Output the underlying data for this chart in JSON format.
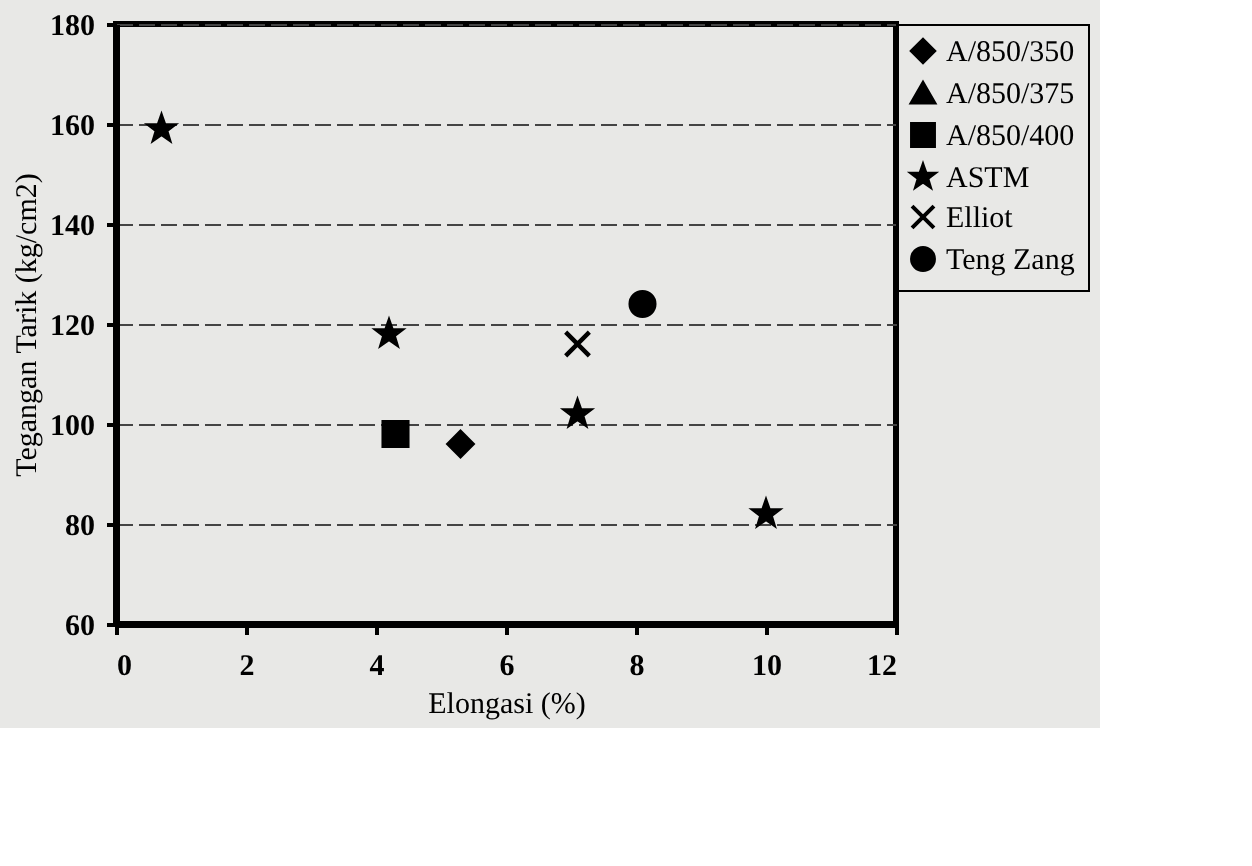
{
  "chart_data": {
    "type": "scatter",
    "xlabel": "Elongasi (%)",
    "ylabel": "Tegangan Tarik (kg/cm2)",
    "xlim": [
      0,
      12
    ],
    "xticks": [
      0,
      2,
      4,
      6,
      8,
      10,
      12
    ],
    "ylim": [
      60,
      180
    ],
    "yticks": [
      60,
      80,
      100,
      120,
      140,
      160,
      180
    ],
    "grid": "y",
    "legend": "top right",
    "series": [
      {
        "name": "A/850/350",
        "color": "#000000",
        "marker": "diamond",
        "x": [
          5.3
        ],
        "values": [
          96
        ]
      },
      {
        "name": "A/850/375",
        "color": "#000000",
        "marker": "triangle"
      },
      {
        "name": "A/850/400",
        "color": "#000000",
        "marker": "square",
        "x": [
          4.3
        ],
        "values": [
          98
        ]
      },
      {
        "name": "ASTM",
        "color": "#000000",
        "marker": "star",
        "x": [
          0.7,
          4.2,
          7.1,
          10.0
        ],
        "values": [
          159,
          118,
          102,
          82
        ]
      },
      {
        "name": "Elliot",
        "color": "#000000",
        "marker": "cross",
        "x": [
          7.1
        ],
        "values": [
          116
        ]
      },
      {
        "name": "Teng Zang",
        "color": "#000000",
        "marker": "circle",
        "x": [
          8.1
        ],
        "values": [
          124
        ]
      }
    ]
  }
}
